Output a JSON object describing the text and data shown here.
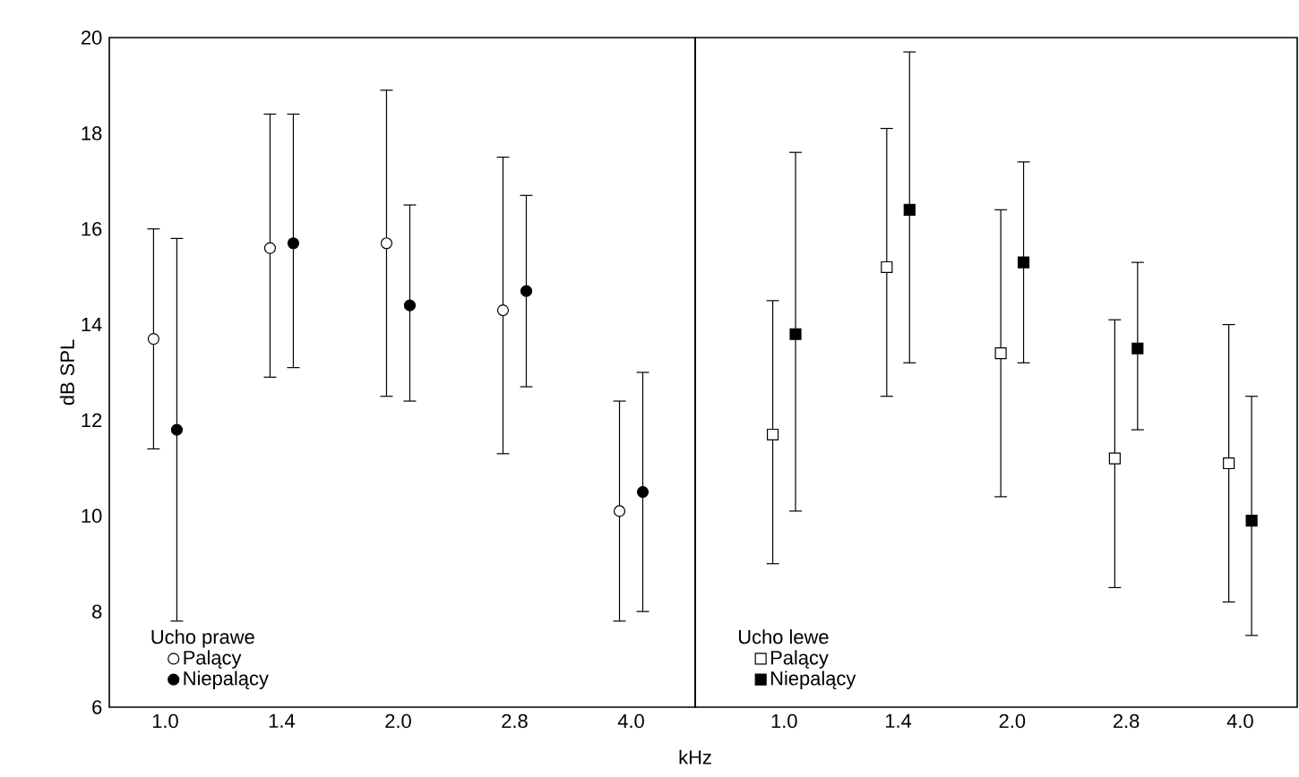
{
  "chart_data": [
    {
      "type": "scatter",
      "ylabel": "dB SPL",
      "legend_title": "Ucho prawe",
      "legend": "bottom left",
      "marker": "circle",
      "categories": [
        "1.0",
        "1.4",
        "2.0",
        "2.8",
        "4.0"
      ],
      "ylim": [
        6,
        20
      ],
      "yticks": [
        6,
        8,
        10,
        12,
        14,
        16,
        18,
        20
      ],
      "series": [
        {
          "name": "Palący",
          "color": "#ffffff",
          "values": [
            13.7,
            15.6,
            15.7,
            14.3,
            10.1
          ],
          "errors": [
            [
              11.4,
              16.0
            ],
            [
              12.9,
              18.4
            ],
            [
              12.5,
              18.9
            ],
            [
              11.3,
              17.5
            ],
            [
              7.8,
              12.4
            ]
          ]
        },
        {
          "name": "Niepalący",
          "color": "#000000",
          "values": [
            11.8,
            15.7,
            14.4,
            14.7,
            10.5
          ],
          "errors": [
            [
              7.8,
              15.8
            ],
            [
              13.1,
              18.4
            ],
            [
              12.4,
              16.5
            ],
            [
              12.7,
              16.7
            ],
            [
              8.0,
              13.0
            ]
          ]
        }
      ]
    },
    {
      "type": "scatter",
      "xlabel": "kHz",
      "legend_title": "Ucho lewe",
      "legend": "bottom left",
      "marker": "square",
      "tick_labels": "x",
      "categories": [
        "1.0",
        "1.4",
        "2.0",
        "2.8",
        "4.0"
      ],
      "ylim": [
        6,
        20
      ],
      "yticks": [
        6,
        8,
        10,
        12,
        14,
        16,
        18,
        20
      ],
      "series": [
        {
          "name": "Palący",
          "color": "#ffffff",
          "values": [
            11.7,
            15.2,
            13.4,
            11.2,
            11.1
          ],
          "errors": [
            [
              9.0,
              14.5
            ],
            [
              12.5,
              18.1
            ],
            [
              10.4,
              16.4
            ],
            [
              8.5,
              14.1
            ],
            [
              8.2,
              14.0
            ]
          ]
        },
        {
          "name": "Niepalący",
          "color": "#000000",
          "values": [
            13.8,
            16.4,
            15.3,
            13.5,
            9.9
          ],
          "errors": [
            [
              10.1,
              17.6
            ],
            [
              13.2,
              19.7
            ],
            [
              13.2,
              17.4
            ],
            [
              11.8,
              15.3
            ],
            [
              7.5,
              12.5
            ]
          ]
        }
      ]
    }
  ]
}
